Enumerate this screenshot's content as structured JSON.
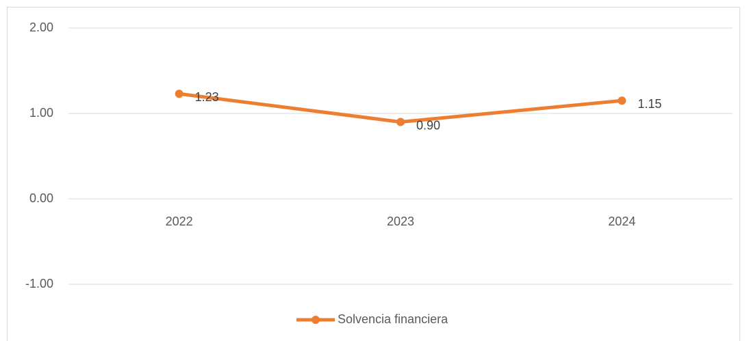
{
  "chart_data": {
    "type": "line",
    "categories": [
      "2022",
      "2023",
      "2024"
    ],
    "series": [
      {
        "name": "Solvencia financiera",
        "color": "#ed7d31",
        "values": [
          1.23,
          0.9,
          1.15
        ],
        "value_labels": [
          "1.23",
          "0.90",
          "1.15"
        ]
      }
    ],
    "ylim": [
      -1,
      2
    ],
    "yticks": [
      {
        "value": -1,
        "label": "-1.00"
      },
      {
        "value": 0,
        "label": "0.00"
      },
      {
        "value": 1,
        "label": "1.00"
      },
      {
        "value": 2,
        "label": "2.00"
      }
    ],
    "grid": true,
    "legend": "bottom"
  }
}
